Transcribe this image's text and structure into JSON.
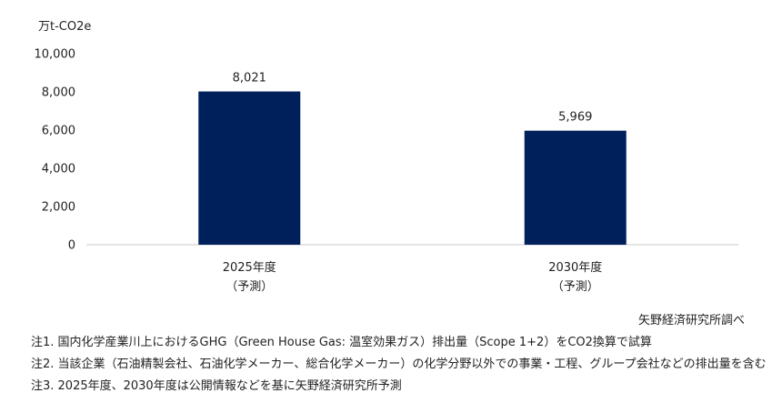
{
  "chart_data": {
    "type": "bar",
    "unit_label": "万t-CO2e",
    "categories": [
      {
        "year": "2025年度",
        "sub": "（予測）"
      },
      {
        "year": "2030年度",
        "sub": "（予測）"
      }
    ],
    "values": [
      8021,
      5969
    ],
    "value_labels": [
      "8,021",
      "5,969"
    ],
    "ylim": [
      0,
      10000
    ],
    "yticks": [
      0,
      2000,
      4000,
      6000,
      8000,
      10000
    ],
    "ytick_labels": [
      "0",
      "2,000",
      "4,000",
      "6,000",
      "8,000",
      "10,000"
    ],
    "grid": false,
    "bar_color": "#00205b"
  },
  "source": "矢野経済研究所調べ",
  "notes": [
    "注1. 国内化学産業川上におけるGHG（Green House Gas: 温室効果ガス）排出量（Scope 1+2）をCO2換算で試算",
    "注2. 当該企業（石油精製会社、石油化学メーカー、総合化学メーカー）の化学分野以外での事業・工程、グループ会社などの排出量を含む",
    "注3. 2025年度、2030年度は公開情報などを基に矢野経済研究所予測"
  ]
}
